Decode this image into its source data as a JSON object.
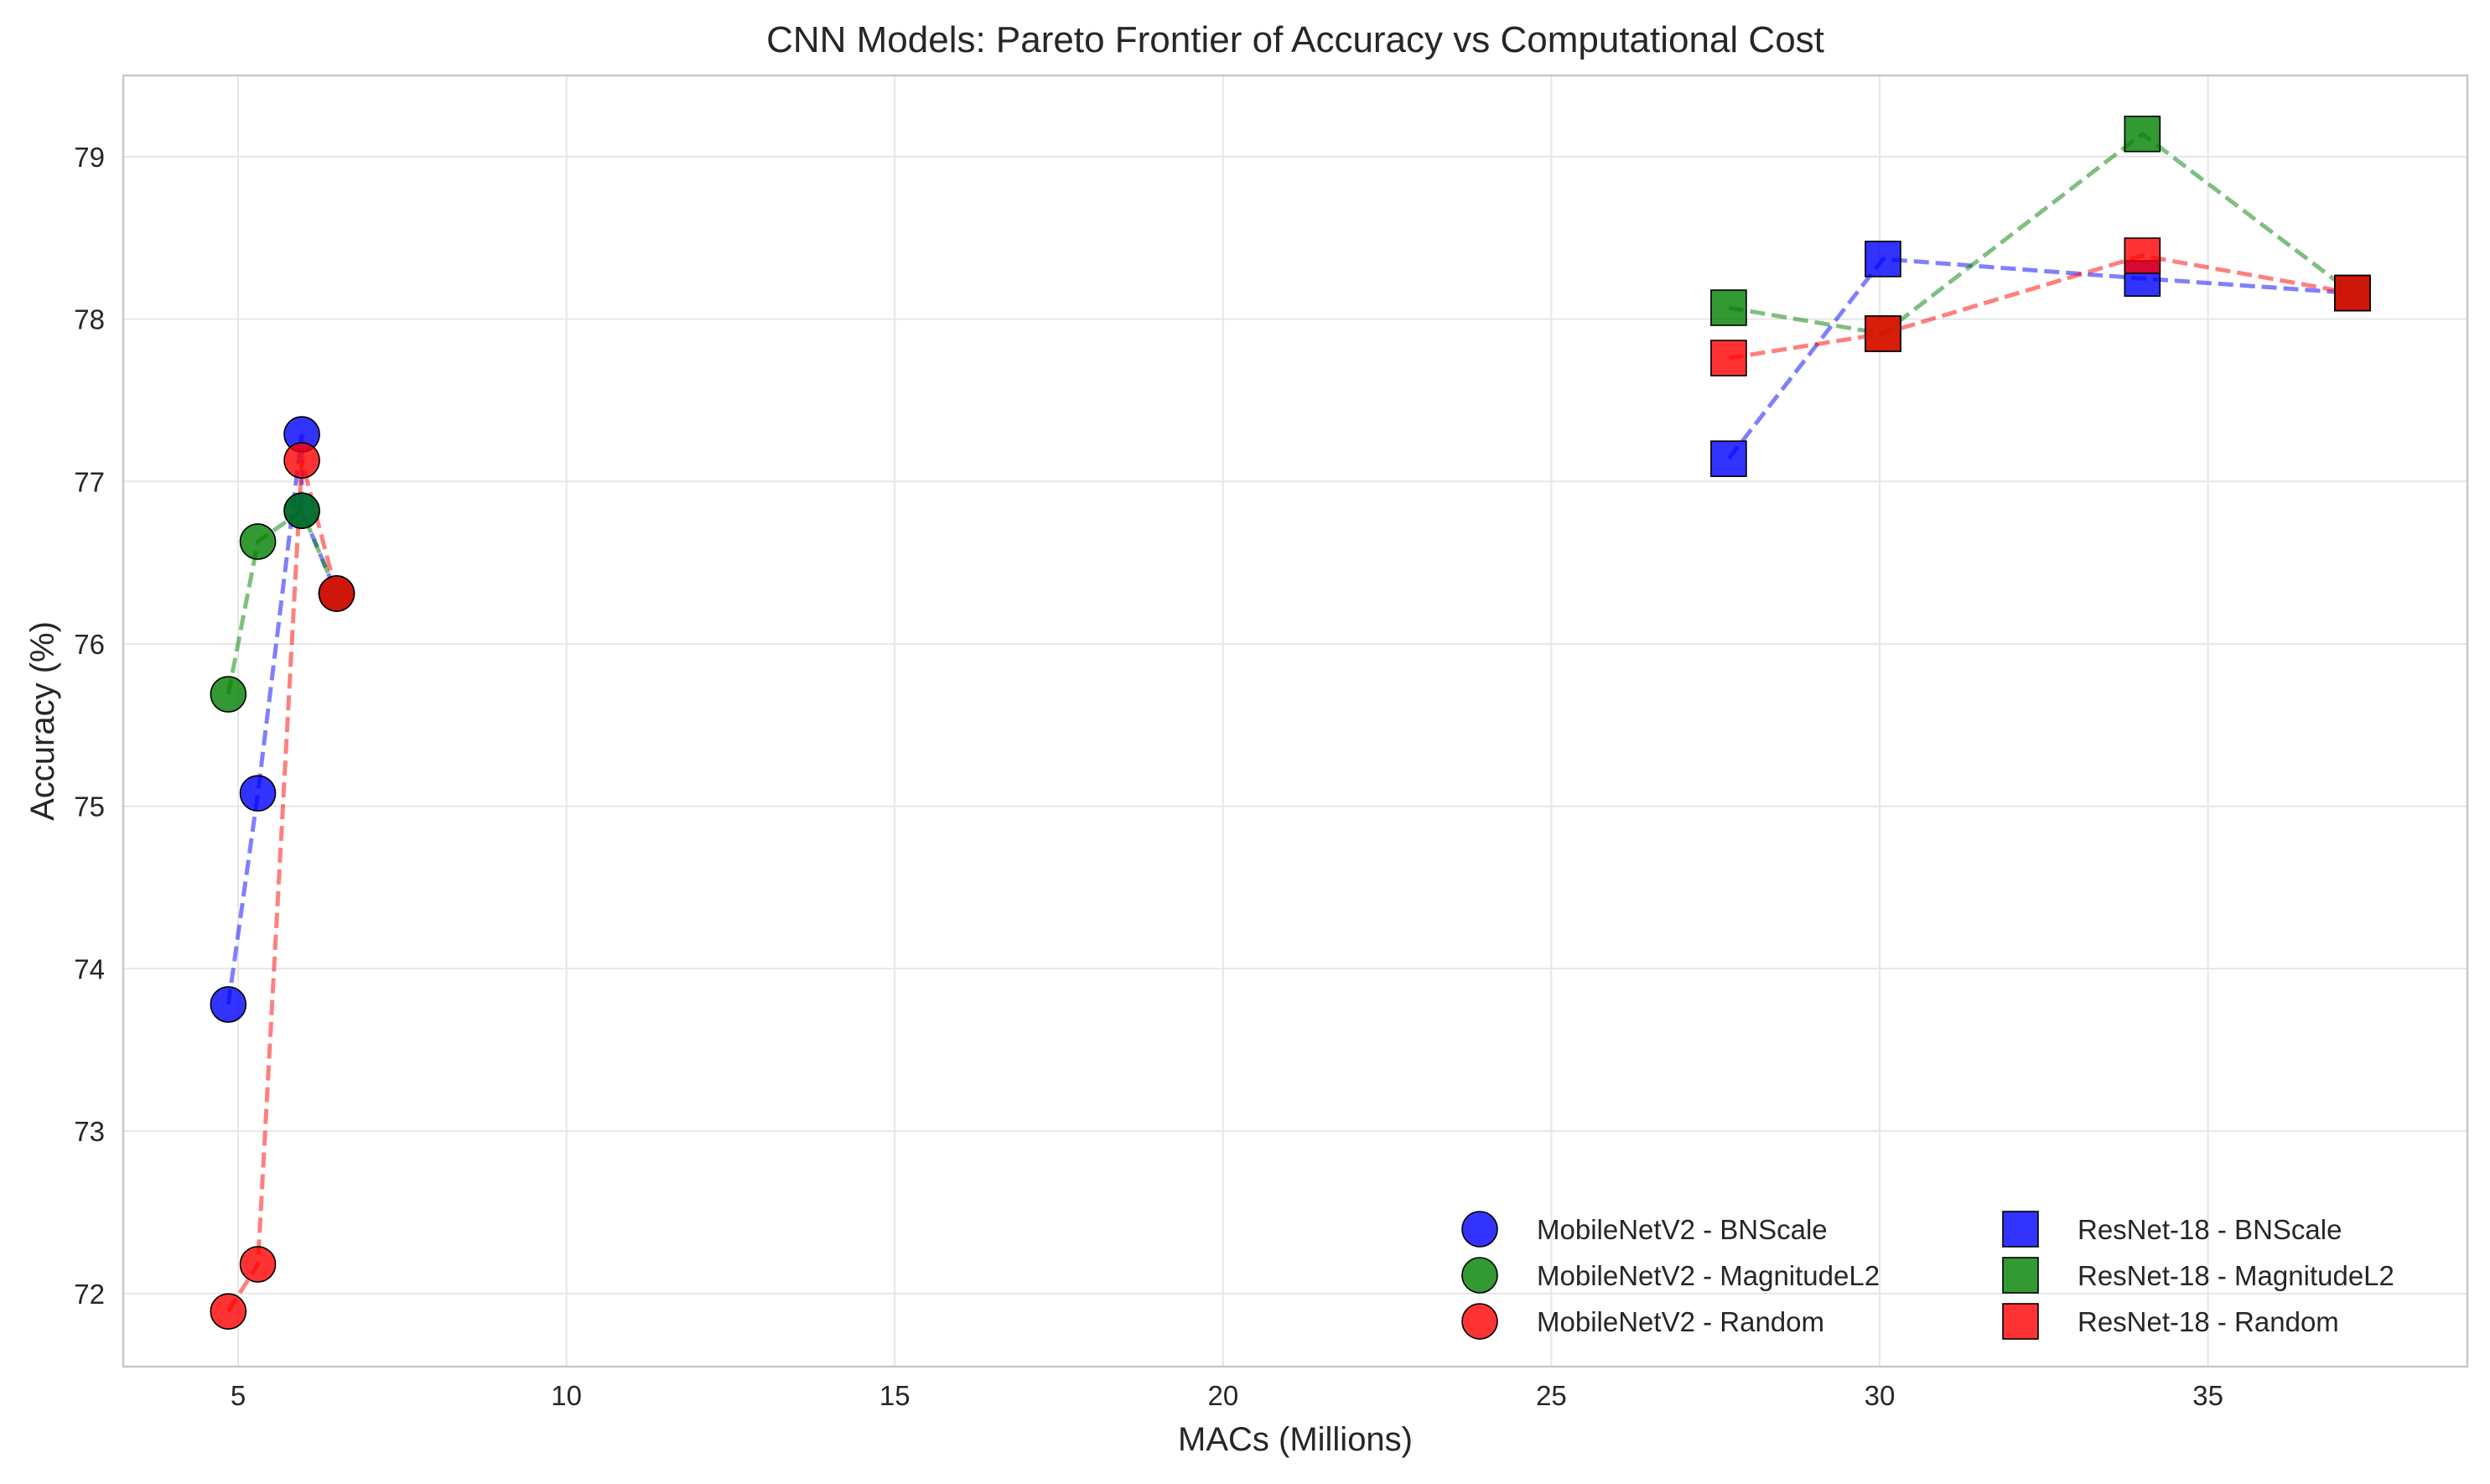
{
  "chart_data": {
    "type": "scatter",
    "title": "CNN Models: Pareto Frontier of Accuracy vs Computational Cost",
    "xlabel": "MACs (Millions)",
    "ylabel": "Accuracy (%)",
    "xlim": [
      3.25,
      38.95
    ],
    "ylim": [
      71.55,
      79.5
    ],
    "xticks": [
      5,
      10,
      15,
      20,
      25,
      30,
      35
    ],
    "yticks": [
      72,
      73,
      74,
      75,
      76,
      77,
      78,
      79
    ],
    "grid": true,
    "legend_position": "bottom-right",
    "series": [
      {
        "name": "MobileNetV2 - BNScale",
        "color": "#0000ff",
        "marker": "circle",
        "x": [
          4.85,
          5.3,
          5.97,
          5.97,
          6.5
        ],
        "y": [
          73.78,
          75.08,
          77.29,
          76.82,
          76.31
        ]
      },
      {
        "name": "MobileNetV2 - MagnitudeL2",
        "color": "#008000",
        "marker": "circle",
        "x": [
          4.85,
          5.3,
          5.97,
          6.5
        ],
        "y": [
          75.69,
          76.63,
          76.82,
          76.31
        ]
      },
      {
        "name": "MobileNetV2 - Random",
        "color": "#ff0000",
        "marker": "circle",
        "x": [
          4.85,
          5.3,
          5.97,
          6.5
        ],
        "y": [
          71.89,
          72.18,
          77.13,
          76.31
        ]
      },
      {
        "name": "ResNet-18 - BNScale",
        "color": "#0000ff",
        "marker": "square",
        "x": [
          27.7,
          30.05,
          34.0,
          37.2
        ],
        "y": [
          77.14,
          78.37,
          78.25,
          78.16
        ]
      },
      {
        "name": "ResNet-18 - MagnitudeL2",
        "color": "#008000",
        "marker": "square",
        "x": [
          27.7,
          30.05,
          34.0,
          37.2
        ],
        "y": [
          78.07,
          77.91,
          79.14,
          78.16
        ]
      },
      {
        "name": "ResNet-18 - Random",
        "color": "#ff0000",
        "marker": "square",
        "x": [
          27.7,
          30.05,
          34.0,
          37.2
        ],
        "y": [
          77.76,
          77.91,
          78.39,
          78.16
        ]
      }
    ]
  }
}
